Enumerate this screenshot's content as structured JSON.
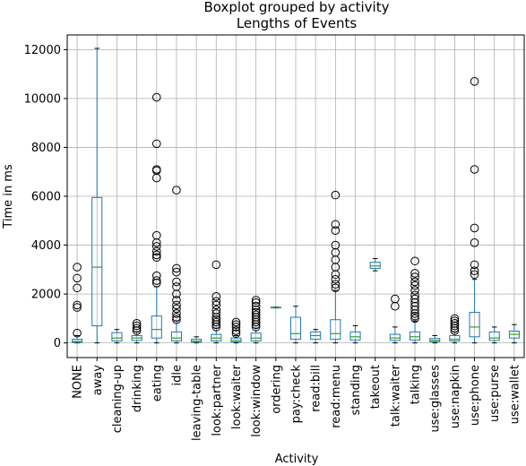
{
  "chart_data": {
    "type": "boxplot",
    "title": "Boxplot grouped by activity",
    "subtitle": "Lengths of Events",
    "xlabel": "Activity",
    "ylabel": "Time in ms",
    "ylim": [
      -600,
      12600
    ],
    "yticks": [
      0,
      2000,
      4000,
      6000,
      8000,
      10000,
      12000
    ],
    "grid": true,
    "colors": {
      "box": "#1f77b4",
      "median": "#2ca02c",
      "flier": "#000000",
      "grid": "#b0b0b0"
    },
    "categories": [
      "NONE",
      "away",
      "cleaning-up",
      "drinking",
      "eating",
      "idle",
      "leaving-table",
      "look:partner",
      "look:waiter",
      "look:window",
      "ordering",
      "pay:check",
      "read:bill",
      "read:menu",
      "standing",
      "takeout",
      "talk:waiter",
      "talking",
      "use:glasses",
      "use:napkin",
      "use:phone",
      "use:purse",
      "use:wallet"
    ],
    "boxes": [
      {
        "category": "NONE",
        "whislo": 0,
        "q1": 20,
        "med": 60,
        "q3": 150,
        "whishi": 300,
        "fliers": [
          400,
          1450,
          1550,
          2250,
          2650,
          3100
        ]
      },
      {
        "category": "away",
        "whislo": 0,
        "q1": 700,
        "med": 3100,
        "q3": 5950,
        "whishi": 12050,
        "fliers": []
      },
      {
        "category": "cleaning-up",
        "whislo": 0,
        "q1": 80,
        "med": 200,
        "q3": 420,
        "whishi": 550,
        "fliers": []
      },
      {
        "category": "drinking",
        "whislo": 0,
        "q1": 100,
        "med": 200,
        "q3": 300,
        "whishi": 450,
        "fliers": [
          500,
          600,
          700,
          800
        ]
      },
      {
        "category": "eating",
        "whislo": 0,
        "q1": 200,
        "med": 550,
        "q3": 1100,
        "whishi": 2300,
        "fliers": [
          2450,
          2550,
          2750,
          3500,
          3600,
          3750,
          3950,
          4100,
          4400,
          6750,
          7050,
          7100,
          8150,
          10050
        ]
      },
      {
        "category": "idle",
        "whislo": 0,
        "q1": 80,
        "med": 200,
        "q3": 450,
        "whishi": 900,
        "fliers": [
          950,
          1050,
          1200,
          1400,
          1550,
          1750,
          2000,
          2300,
          2500,
          2900,
          3050,
          6250
        ]
      },
      {
        "category": "leaving-table",
        "whislo": 0,
        "q1": 30,
        "med": 70,
        "q3": 150,
        "whishi": 250,
        "fliers": []
      },
      {
        "category": "look:partner",
        "whislo": 0,
        "q1": 80,
        "med": 200,
        "q3": 350,
        "whishi": 600,
        "fliers": [
          650,
          750,
          850,
          950,
          1050,
          1200,
          1350,
          1550,
          1700,
          1900,
          3200
        ]
      },
      {
        "category": "look:waiter",
        "whislo": 0,
        "q1": 40,
        "med": 100,
        "q3": 200,
        "whishi": 300,
        "fliers": [
          380,
          500,
          650,
          750,
          850
        ]
      },
      {
        "category": "look:window",
        "whislo": 0,
        "q1": 80,
        "med": 200,
        "q3": 400,
        "whishi": 600,
        "fliers": [
          650,
          750,
          850,
          950,
          1050,
          1150,
          1250,
          1350,
          1500,
          1650,
          1750
        ]
      },
      {
        "category": "ordering",
        "whislo": 1430,
        "q1": 1440,
        "med": 1450,
        "q3": 1460,
        "whishi": 1470,
        "fliers": []
      },
      {
        "category": "pay:check",
        "whislo": 0,
        "q1": 150,
        "med": 380,
        "q3": 1050,
        "whishi": 1500,
        "fliers": []
      },
      {
        "category": "read:bill",
        "whislo": 0,
        "q1": 150,
        "med": 300,
        "q3": 450,
        "whishi": 550,
        "fliers": []
      },
      {
        "category": "read:menu",
        "whislo": 0,
        "q1": 150,
        "med": 380,
        "q3": 950,
        "whishi": 2150,
        "fliers": [
          2250,
          2400,
          2600,
          2800,
          3100,
          3400,
          3700,
          4000,
          4600,
          4850,
          6050
        ]
      },
      {
        "category": "standing",
        "whislo": 0,
        "q1": 120,
        "med": 250,
        "q3": 450,
        "whishi": 700,
        "fliers": []
      },
      {
        "category": "takeout",
        "whislo": 2950,
        "q1": 3050,
        "med": 3150,
        "q3": 3300,
        "whishi": 3450,
        "fliers": []
      },
      {
        "category": "talk:waiter",
        "whislo": 0,
        "q1": 100,
        "med": 200,
        "q3": 350,
        "whishi": 650,
        "fliers": [
          1500,
          1800
        ]
      },
      {
        "category": "talking",
        "whislo": 0,
        "q1": 120,
        "med": 250,
        "q3": 450,
        "whishi": 900,
        "fliers": [
          1000,
          1100,
          1200,
          1350,
          1500,
          1650,
          1800,
          1950,
          2150,
          2350,
          2500,
          2700,
          2850,
          3350
        ]
      },
      {
        "category": "use:glasses",
        "whislo": 0,
        "q1": 50,
        "med": 100,
        "q3": 180,
        "whishi": 300,
        "fliers": []
      },
      {
        "category": "use:napkin",
        "whislo": 0,
        "q1": 80,
        "med": 150,
        "q3": 300,
        "whishi": 450,
        "fliers": [
          500,
          600,
          700,
          800,
          900,
          1000
        ]
      },
      {
        "category": "use:phone",
        "whislo": 0,
        "q1": 250,
        "med": 650,
        "q3": 1250,
        "whishi": 2600,
        "fliers": [
          2800,
          2950,
          3200,
          4100,
          4700,
          7100,
          10700
        ]
      },
      {
        "category": "use:purse",
        "whislo": 0,
        "q1": 100,
        "med": 200,
        "q3": 450,
        "whishi": 650,
        "fliers": []
      },
      {
        "category": "use:wallet",
        "whislo": 0,
        "q1": 200,
        "med": 350,
        "q3": 480,
        "whishi": 750,
        "fliers": []
      }
    ]
  }
}
